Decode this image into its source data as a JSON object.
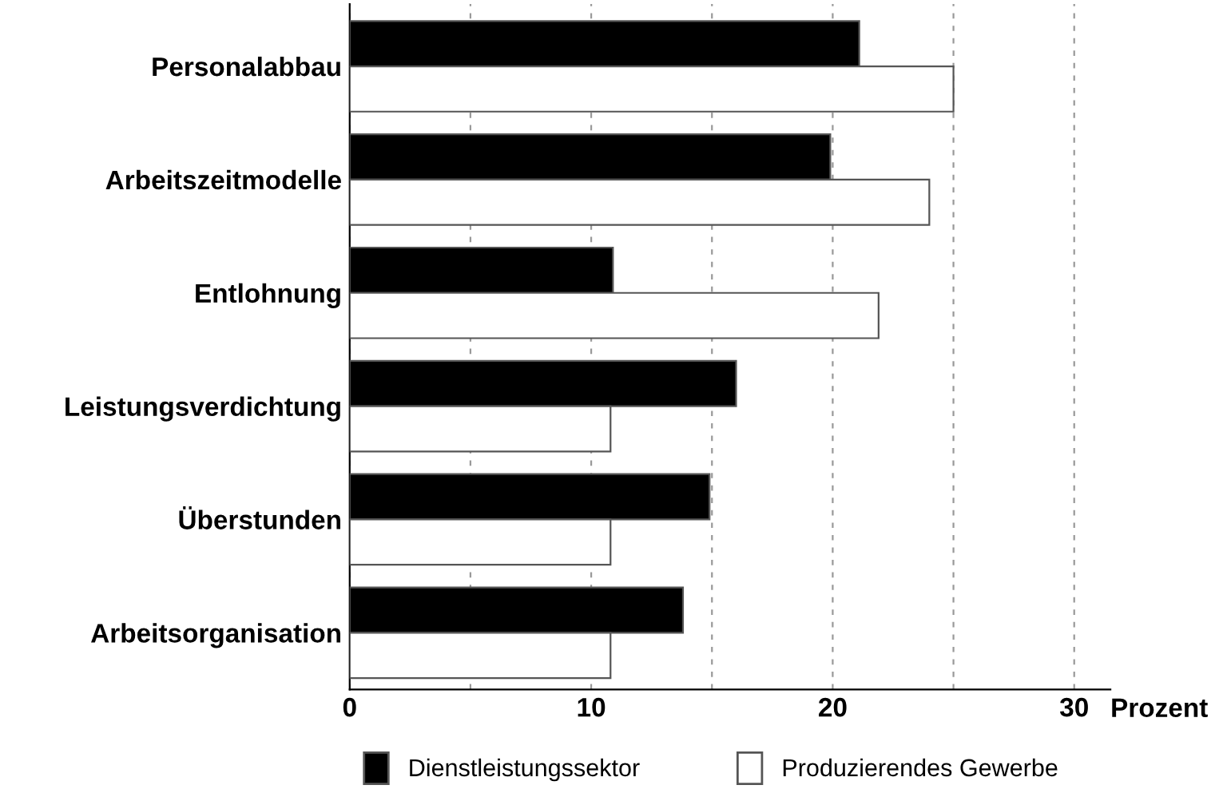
{
  "chart_data": {
    "type": "bar",
    "orientation": "horizontal",
    "xlabel": "Prozent",
    "categories": [
      "Personalabbau",
      "Arbeitszeitmodelle",
      "Entlohnung",
      "Leistungsverdichtung",
      "Überstunden",
      "Arbeitsorganisation"
    ],
    "series": [
      {
        "name": "Dienstleistungssektor",
        "color": "#000000",
        "values": [
          21.1,
          19.9,
          10.9,
          16.0,
          14.9,
          13.8
        ]
      },
      {
        "name": "Produzierendes Gewerbe",
        "color": "#ffffff",
        "values": [
          25.0,
          24.0,
          21.9,
          10.8,
          10.8,
          10.8
        ]
      }
    ],
    "xlim": [
      0,
      31.5
    ],
    "xticks": [
      0,
      {
        "value": 5,
        "label": null
      },
      10,
      {
        "value": 15,
        "label": null
      },
      20,
      {
        "value": 25,
        "label": null
      },
      30
    ],
    "grid": "x",
    "legend": "bottom"
  }
}
